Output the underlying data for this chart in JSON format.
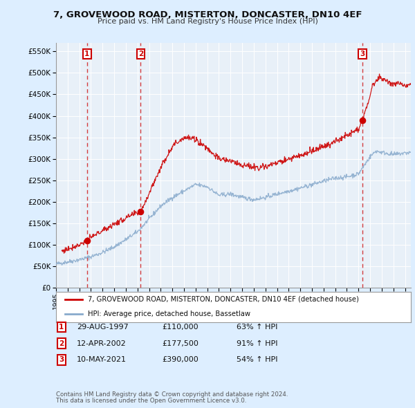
{
  "title": "7, GROVEWOOD ROAD, MISTERTON, DONCASTER, DN10 4EF",
  "subtitle": "Price paid vs. HM Land Registry's House Price Index (HPI)",
  "legend_line1": "7, GROVEWOOD ROAD, MISTERTON, DONCASTER, DN10 4EF (detached house)",
  "legend_line2": "HPI: Average price, detached house, Bassetlaw",
  "footer_line1": "Contains HM Land Registry data © Crown copyright and database right 2024.",
  "footer_line2": "This data is licensed under the Open Government Licence v3.0.",
  "transactions": [
    {
      "label": "1",
      "date": "29-AUG-1997",
      "price": 110000,
      "pct": "63% ↑ HPI",
      "x": 1997.66
    },
    {
      "label": "2",
      "date": "12-APR-2002",
      "price": 177500,
      "pct": "91% ↑ HPI",
      "x": 2002.28
    },
    {
      "label": "3",
      "date": "10-MAY-2021",
      "price": 390000,
      "pct": "54% ↑ HPI",
      "x": 2021.36
    }
  ],
  "hpi_color": "#88aacc",
  "price_color": "#cc0000",
  "dashed_line_color": "#cc0000",
  "background_color": "#ddeeff",
  "plot_bg_color": "#e8f0f8",
  "grid_color": "#ffffff",
  "ylim": [
    0,
    570000
  ],
  "xlim_start": 1995.0,
  "xlim_end": 2025.5,
  "yticks": [
    0,
    50000,
    100000,
    150000,
    200000,
    250000,
    300000,
    350000,
    400000,
    450000,
    500000,
    550000
  ]
}
